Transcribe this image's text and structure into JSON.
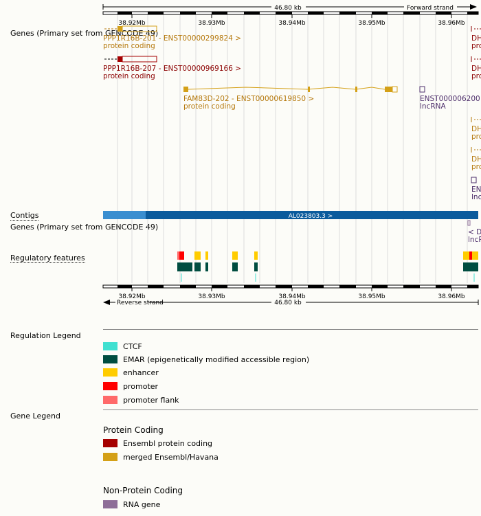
{
  "scale": {
    "length_label": "46.80 kb",
    "forward_strand": "Forward strand",
    "reverse_strand": "Reverse strand",
    "ticks": [
      "38.92Mb",
      "38.93Mb",
      "38.94Mb",
      "38.95Mb",
      "38.96Mb"
    ]
  },
  "tracks": {
    "genes_top": "Genes (Primary set from GENCODE 49)",
    "contigs": "Contigs",
    "genes_bottom": "Genes (Primary set from GENCODE 49)",
    "regulatory": "Regulatory features"
  },
  "genes": [
    {
      "name": "PPP1R16B-201 - ENST00000299824 >",
      "biotype": "protein coding",
      "color": "#b5780c"
    },
    {
      "name": "PPP1R16B-207 - ENST00000969166 >",
      "biotype": "protein coding",
      "color": "#8b0000"
    },
    {
      "name": "FAM83D-202 - ENST00000619850 >",
      "biotype": "protein coding",
      "color": "#b5780c"
    },
    {
      "name": "ENST000006200",
      "biotype": "lncRNA",
      "color": "#4d2e6b"
    }
  ],
  "edge_labels": {
    "dh": "DH",
    "pro": "pro",
    "en": "EN",
    "lnc": "lnc",
    "lncr": "lncR",
    "d_rev": "< D"
  },
  "contig": {
    "label": "AL023803.3 >",
    "color": "#0b5b9c",
    "light_color": "#3a8ed0"
  },
  "regulation_legend": {
    "title": "Regulation Legend",
    "items": [
      {
        "label": "CTCF",
        "color": "#40e0d0"
      },
      {
        "label": "EMAR (epigenetically modified accessible region)",
        "color": "#004d40"
      },
      {
        "label": "enhancer",
        "color": "#ffcc00"
      },
      {
        "label": "promoter",
        "color": "#ff0000"
      },
      {
        "label": "promoter flank",
        "color": "#ff6a6a"
      }
    ]
  },
  "gene_legend": {
    "title": "Gene Legend",
    "protein_coding_title": "Protein Coding",
    "protein_coding": [
      {
        "label": "Ensembl protein coding",
        "color": "#a50000"
      },
      {
        "label": "merged Ensembl/Havana",
        "color": "#d4a017"
      }
    ],
    "non_protein_title": "Non-Protein Coding",
    "non_protein": [
      {
        "label": "RNA gene",
        "color": "#8e6e98"
      }
    ]
  }
}
